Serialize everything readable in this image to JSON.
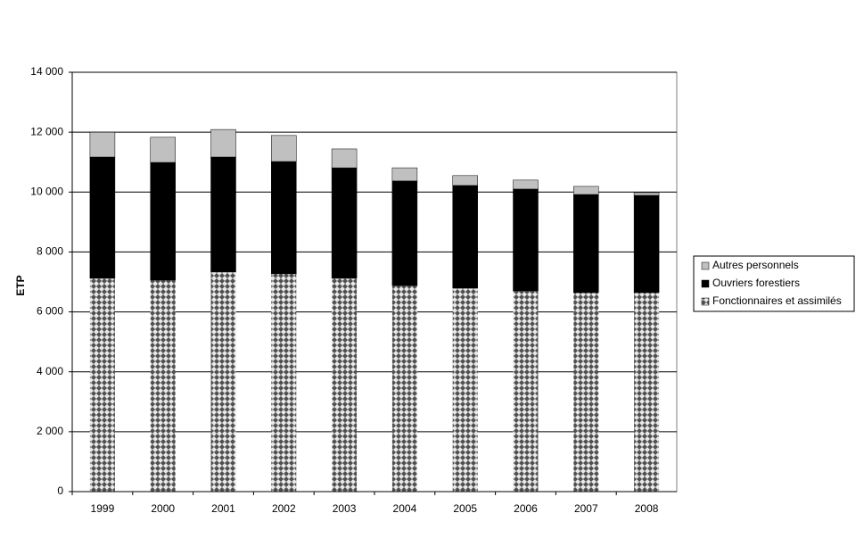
{
  "chart_data": {
    "type": "stacked-bar",
    "y_label": "ETP",
    "categories": [
      "1999",
      "2000",
      "2001",
      "2002",
      "2003",
      "2004",
      "2005",
      "2006",
      "2007",
      "2008"
    ],
    "series": [
      {
        "name": "Fonctionnaires et assimilés",
        "color": "#b8b8b8",
        "pattern": "diamonds",
        "values": [
          7120,
          7060,
          7330,
          7270,
          7120,
          6880,
          6790,
          6700,
          6640,
          6640
        ]
      },
      {
        "name": "Ouvriers forestiers",
        "color": "#000000",
        "values": [
          4050,
          3930,
          3840,
          3750,
          3690,
          3490,
          3430,
          3400,
          3280,
          3250
        ]
      },
      {
        "name": "Autres personnels",
        "color": "#c0c0c0",
        "values": [
          830,
          840,
          920,
          870,
          630,
          440,
          330,
          300,
          270,
          90
        ]
      }
    ],
    "ylim": [
      0,
      14000
    ],
    "yticks": [
      0,
      {
        "value": 2000,
        "label": "2 000"
      },
      {
        "value": 4000,
        "label": "4 000"
      },
      {
        "value": 6000,
        "label": "6 000"
      },
      {
        "value": 8000,
        "label": "8 000"
      },
      {
        "value": 10000,
        "label": "10 000"
      },
      {
        "value": 12000,
        "label": "12 000"
      },
      {
        "value": 14000,
        "label": "14 000"
      }
    ],
    "grid": true,
    "legend": "right"
  }
}
